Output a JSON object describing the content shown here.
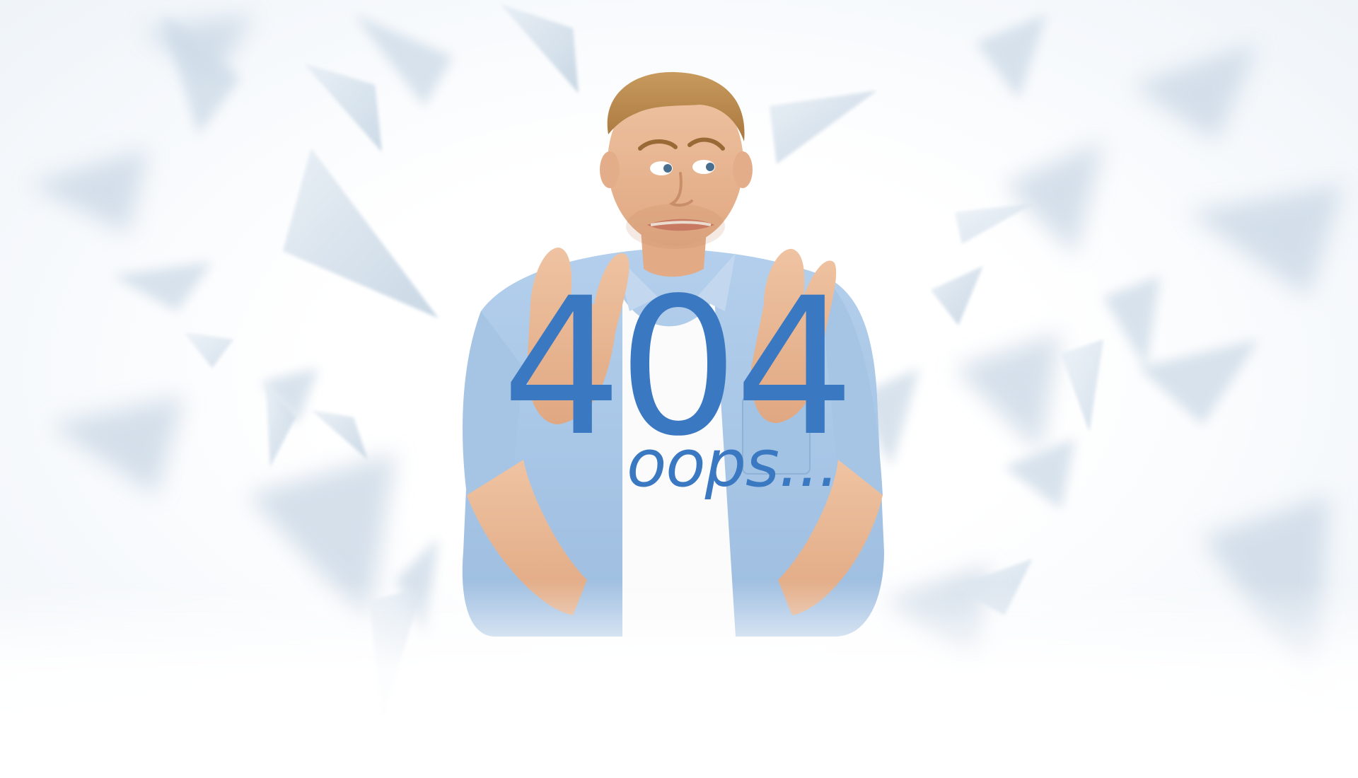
{
  "error": {
    "code": "404",
    "subtitle": "oops..."
  },
  "colors": {
    "accent": "#3a78c2",
    "shard_light": "#dfe9f2",
    "shard_mid": "#c9d8e6",
    "shirt": "#a9c7e6",
    "skin": "#e9b894",
    "hair": "#b98a4e"
  },
  "icons": {
    "illustration": "man-crossed-fingers",
    "background": "broken-glass-shards"
  }
}
